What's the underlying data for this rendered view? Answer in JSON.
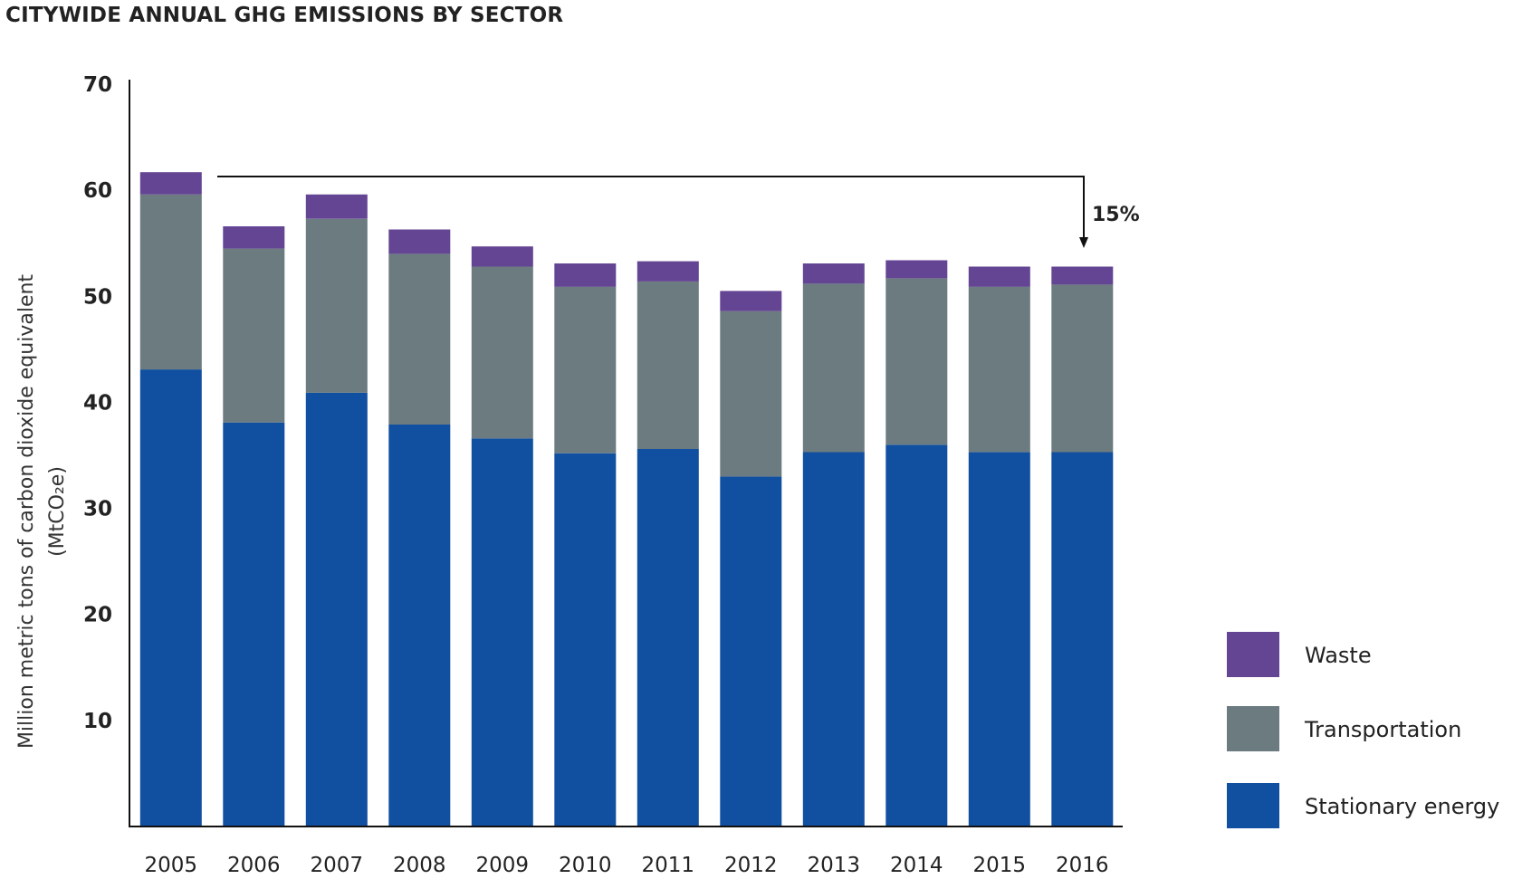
{
  "chart_data": {
    "type": "bar",
    "stacked": true,
    "title": "CITYWIDE ANNUAL GHG EMISSIONS BY SECTOR",
    "ylabel": "Million metric tons of carbon dioxide equivalent",
    "ylabel_unit": "(MtCO₂e)",
    "xlabel": "",
    "ylim": [
      0,
      70
    ],
    "yticks": [
      10,
      20,
      30,
      40,
      50,
      60,
      70
    ],
    "categories": [
      "2005",
      "2006",
      "2007",
      "2008",
      "2009",
      "2010",
      "2011",
      "2012",
      "2013",
      "2014",
      "2015",
      "2016"
    ],
    "series": [
      {
        "name": "Stationary energy",
        "color": "#114fa0",
        "values": [
          43.1,
          38.1,
          40.9,
          37.9,
          36.6,
          35.2,
          35.6,
          33.0,
          35.3,
          36.0,
          35.3,
          35.3
        ]
      },
      {
        "name": "Transportation",
        "color": "#6b7b80",
        "values": [
          16.5,
          16.4,
          16.4,
          16.1,
          16.2,
          15.7,
          15.8,
          15.6,
          15.9,
          15.7,
          15.6,
          15.8
        ]
      },
      {
        "name": "Waste",
        "color": "#644593",
        "values": [
          2.1,
          2.1,
          2.3,
          2.3,
          1.9,
          2.2,
          1.9,
          1.9,
          1.9,
          1.7,
          1.9,
          1.7
        ]
      }
    ],
    "legend": {
      "position": "bottom-right",
      "order": [
        "Waste",
        "Transportation",
        "Stationary energy"
      ]
    },
    "annotation": {
      "text": "15%",
      "from": "2005",
      "to": "2016"
    },
    "grid": false
  }
}
